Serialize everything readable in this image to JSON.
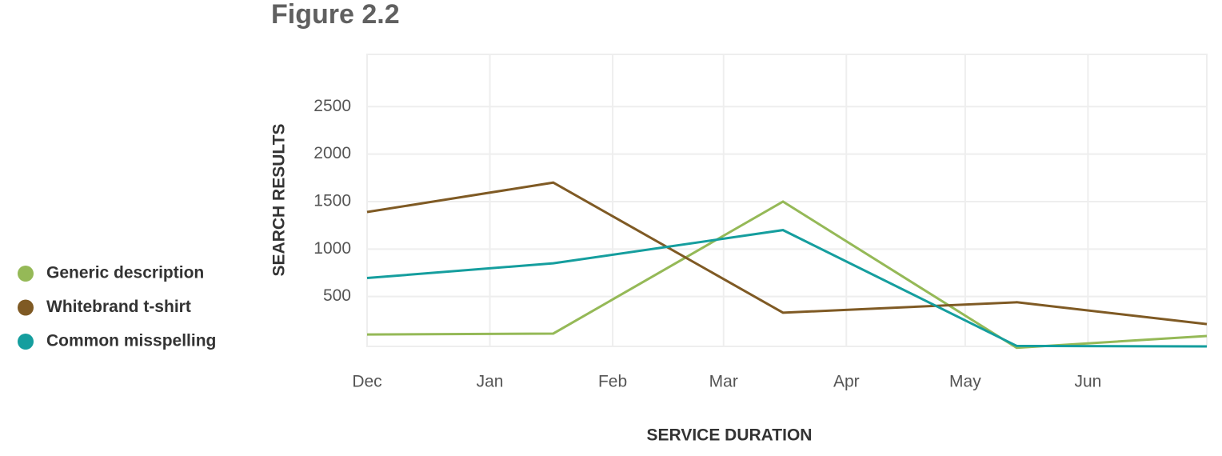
{
  "chart_data": {
    "type": "line",
    "title": "Figure 2.2",
    "x_label": "SERVICE DURATION",
    "y_label": "SEARCH RESULTS",
    "x": [
      0,
      47,
      105,
      164,
      212
    ],
    "xlim": [
      0,
      212
    ],
    "xticks": [
      {
        "value": 0,
        "label": "Dec"
      },
      {
        "value": 31,
        "label": "Jan"
      },
      {
        "value": 62,
        "label": "Feb"
      },
      {
        "value": 90,
        "label": "Mar"
      },
      {
        "value": 121,
        "label": "Apr"
      },
      {
        "value": 151,
        "label": "May"
      },
      {
        "value": 182,
        "label": "Jun"
      }
    ],
    "ylim": [
      -25,
      3050
    ],
    "yticks": [
      500,
      1000,
      1500,
      2000,
      2500
    ],
    "grid": true,
    "legend": "left",
    "series": [
      {
        "name": "Generic description",
        "color": "#95b957",
        "values": [
          100,
          110,
          1500,
          -40,
          85
        ]
      },
      {
        "name": "Whitebrand t-shirt",
        "color": "#7f5a24",
        "values": [
          1390,
          1700,
          330,
          440,
          210
        ]
      },
      {
        "name": "Common misspelling",
        "color": "#159e9e",
        "values": [
          695,
          850,
          1200,
          -20,
          -25
        ]
      }
    ]
  }
}
